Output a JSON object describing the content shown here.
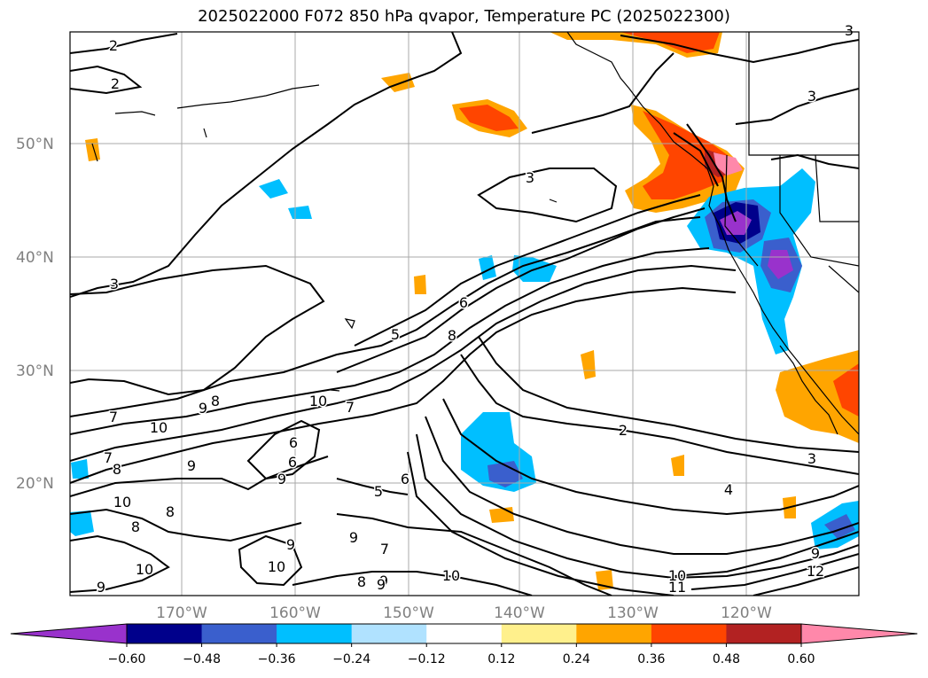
{
  "title": "2025022000 F072 850 hPa qvapor, Temperature PC (2025022300)",
  "map": {
    "lat_labels": [
      "50°N",
      "40°N",
      "30°N",
      "20°N"
    ],
    "lon_labels": [
      "170°W",
      "160°W",
      "150°W",
      "140°W",
      "130°W",
      "120°W"
    ],
    "contour_labels": [
      "2",
      "2",
      "3",
      "3",
      "3",
      "3",
      "5",
      "6",
      "8",
      "2",
      "3",
      "4",
      "7",
      "9",
      "8",
      "10",
      "10",
      "7",
      "6",
      "9",
      "10",
      "9",
      "8",
      "6",
      "5",
      "6",
      "7",
      "7",
      "9",
      "8",
      "10",
      "9",
      "10",
      "9",
      "10",
      "11",
      "12",
      "9",
      "10",
      "9",
      "8",
      "9",
      "8"
    ]
  },
  "colorbar": {
    "ticks": [
      "−0.60",
      "−0.48",
      "−0.36",
      "−0.24",
      "−0.12",
      "0.12",
      "0.24",
      "0.36",
      "0.48",
      "0.60"
    ],
    "colors": [
      "#9932cc",
      "#00008b",
      "#3a5fcd",
      "#00bfff",
      "#b0e2ff",
      "#ffffff",
      "#fff08c",
      "#ffa500",
      "#ff4500",
      "#b22222",
      "#ff88aa"
    ]
  }
}
